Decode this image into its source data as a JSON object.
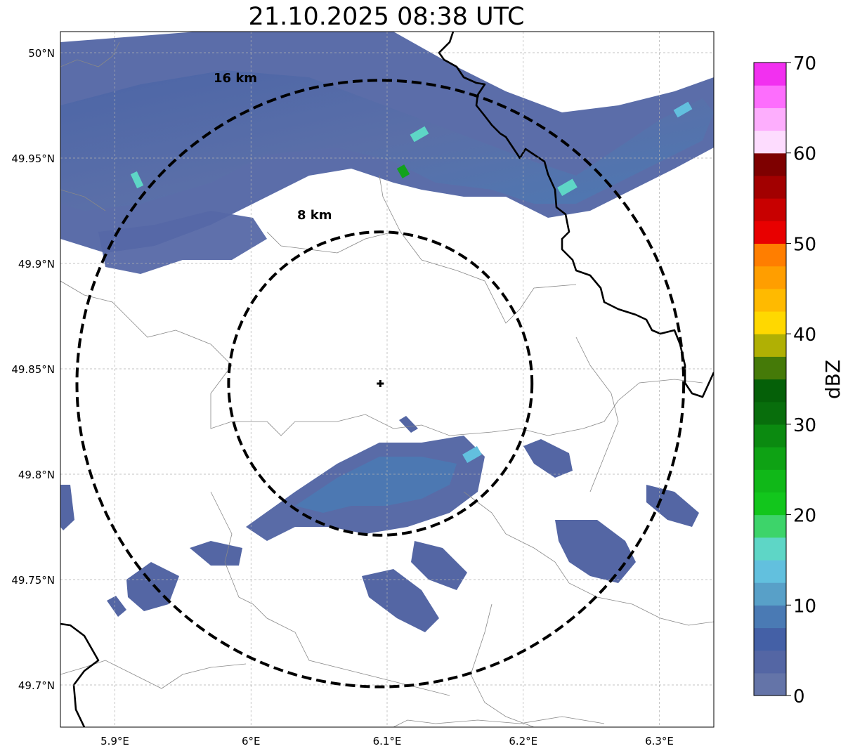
{
  "title": "21.10.2025 08:38 UTC",
  "map": {
    "lon_range": [
      5.86,
      6.34
    ],
    "lat_range": [
      49.68,
      50.01
    ],
    "lon_ticks": [
      {
        "value": 5.9,
        "label": "5.9°E"
      },
      {
        "value": 6.0,
        "label": "6°E"
      },
      {
        "value": 6.1,
        "label": "6.1°E"
      },
      {
        "value": 6.2,
        "label": "6.2°E"
      },
      {
        "value": 6.3,
        "label": "6.3°E"
      }
    ],
    "lat_ticks": [
      {
        "value": 50.0,
        "label": "50°N"
      },
      {
        "value": 49.95,
        "label": "49.95°N"
      },
      {
        "value": 49.9,
        "label": "49.9°N"
      },
      {
        "value": 49.85,
        "label": "49.85°N"
      },
      {
        "value": 49.8,
        "label": "49.8°N"
      },
      {
        "value": 49.75,
        "label": "49.75°N"
      },
      {
        "value": 49.7,
        "label": "49.7°N"
      }
    ],
    "radar_center": {
      "lon": 6.095,
      "lat": 49.843
    },
    "range_rings": [
      {
        "radius_km": 8,
        "label": "8 km"
      },
      {
        "radius_km": 16,
        "label": "16 km"
      }
    ]
  },
  "colorbar": {
    "label": "dBZ",
    "min": 0,
    "max": 70,
    "step": 2.5,
    "tick_labels": [
      "0",
      "10",
      "20",
      "30",
      "40",
      "50",
      "60",
      "70"
    ],
    "colors": [
      "#6474a8",
      "#5466a4",
      "#4460a6",
      "#4a7ab4",
      "#58a0c8",
      "#62c0de",
      "#5ed6c6",
      "#3dd46a",
      "#12c61c",
      "#10b818",
      "#0ea214",
      "#0b8a10",
      "#086e0c",
      "#056008",
      "#457a08",
      "#b0b004",
      "#ffd800",
      "#ffba00",
      "#ff9e00",
      "#ff7e00",
      "#e80000",
      "#c80000",
      "#a20000",
      "#7e0000",
      "#fddcfe",
      "#fdaefd",
      "#fd6efd",
      "#f230f0"
    ]
  }
}
